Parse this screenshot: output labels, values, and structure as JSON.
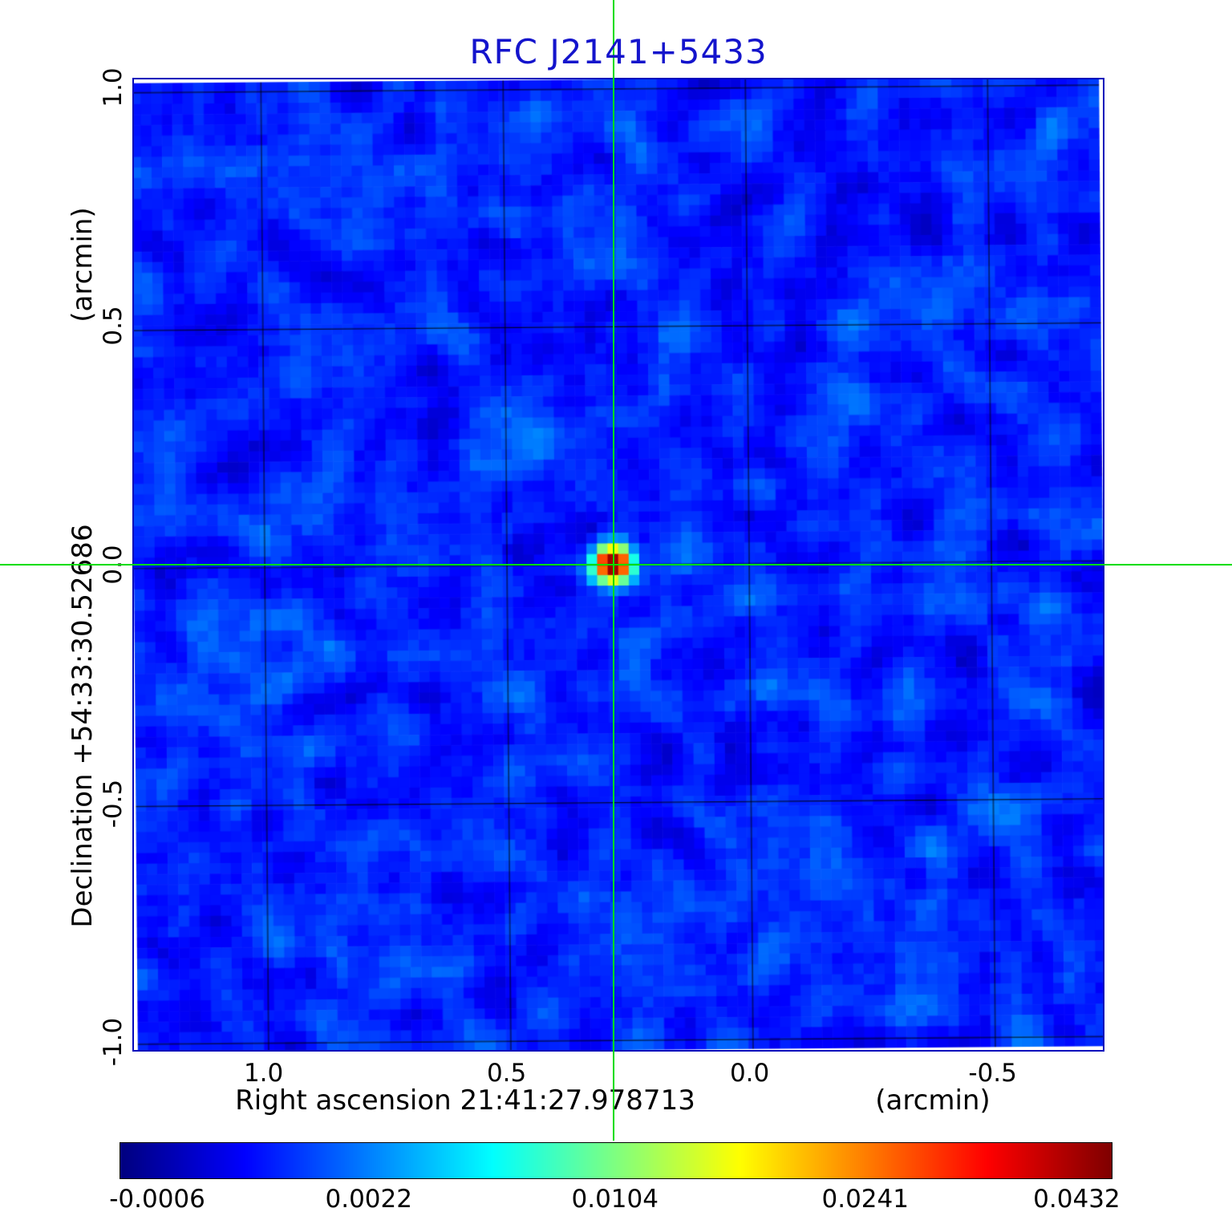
{
  "title": "RFC J2141+5433",
  "axes": {
    "x_label": "Right ascension  21:41:27.978713",
    "x_unit": "(arcmin)",
    "y_label": "Declination  +54:33:30.52686",
    "y_unit": "(arcmin)",
    "x_tick_labels": [
      "1.0",
      "0.5",
      "0.0",
      "-0.5"
    ],
    "y_tick_labels": [
      "1.0",
      "0.5",
      "0.0",
      "-0.5",
      "-1.0"
    ]
  },
  "colorbar": {
    "tick_labels": [
      "-0.0006",
      "0.0022",
      "0.0104",
      "0.0241",
      "0.0432"
    ]
  },
  "colors": {
    "title": "#1414cc",
    "frame": "#0008bb",
    "crosshair": "#00dd00",
    "grid": "#000000"
  },
  "chart_data": {
    "type": "heatmap",
    "title": "RFC J2141+5433",
    "xlabel": "Right ascension 21:41:27.978713 (arcmin)",
    "ylabel": "Declination +54:33:30.52686 (arcmin)",
    "xlim": [
      1.27,
      -0.73
    ],
    "ylim": [
      -1.02,
      1.02
    ],
    "x_ticks": [
      1.0,
      0.5,
      0.0,
      -0.5
    ],
    "y_ticks": [
      1.0,
      0.5,
      0.0,
      -0.5,
      -1.0
    ],
    "grid_on": true,
    "colormap": "jet",
    "colorbar_ticks": [
      -0.0006,
      0.0022,
      0.0104,
      0.0241,
      0.0432
    ],
    "value_min": -0.0006,
    "value_max": 0.0432,
    "peak": {
      "x_arcmin": 0.28,
      "y_arcmin": 0.0,
      "peak_value": 0.0432
    },
    "background_noise_level": 0.001,
    "grid_cells": 92,
    "legend": "colorbar-bottom",
    "source_name": "RFC J2141+5433"
  }
}
